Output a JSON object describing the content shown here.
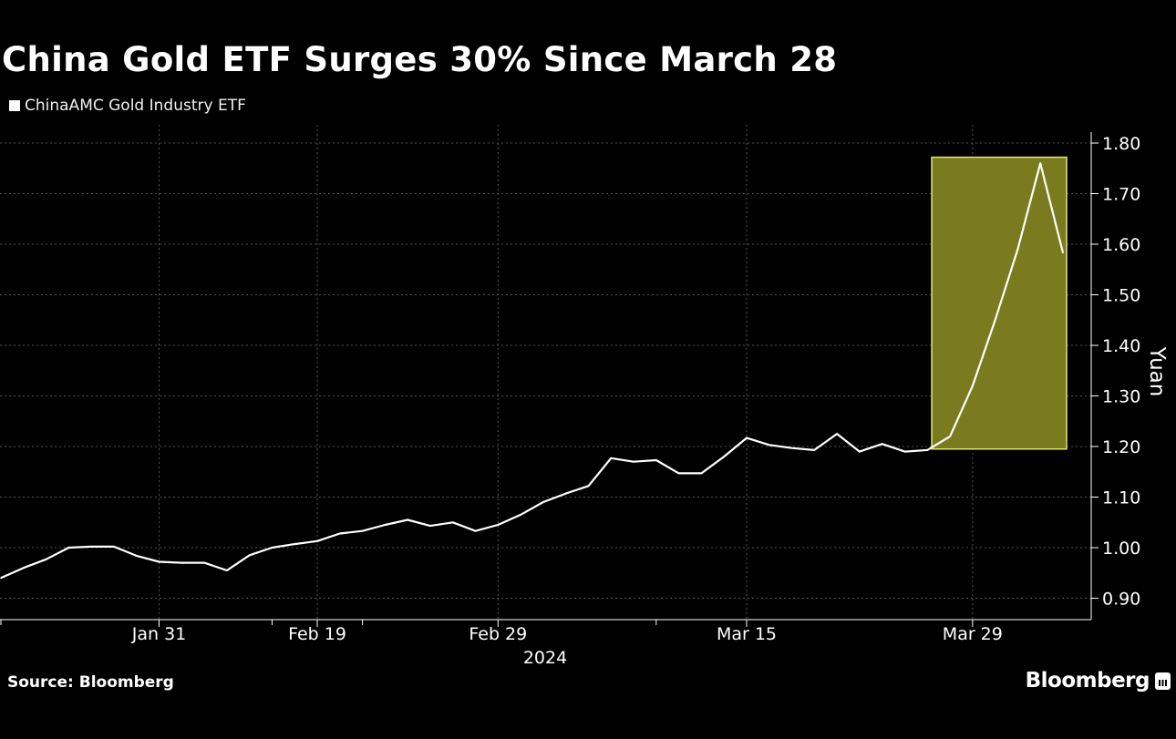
{
  "title": "China Gold ETF Surges 30% Since March 28",
  "source": "Source: Bloomberg",
  "brand": "Bloomberg",
  "colors": {
    "background": "#000000",
    "line": "#ffffff",
    "highlight_fill": "#7a7a1e",
    "highlight_stroke": "#e6e67a",
    "grid": "#555555"
  },
  "chart_data": {
    "type": "line",
    "title": "China Gold ETF Surges 30% Since March 28",
    "ylabel": "Yuan",
    "xlabel": "",
    "year_label": "2024",
    "ylim": [
      0.86,
      1.84
    ],
    "y_ticks": [
      "1.80",
      "1.70",
      "1.60",
      "1.50",
      "1.40",
      "1.30",
      "1.20",
      "1.10",
      "1.00",
      "0.90"
    ],
    "x_tick_labels": [
      "Jan 31",
      "Feb 19",
      "Feb 29",
      "Mar 15",
      "Mar 29"
    ],
    "legend": "top-left",
    "grid": true,
    "series": [
      {
        "name": "ChinaAMC Gold Industry ETF",
        "values": [
          0.94,
          0.96,
          0.977,
          1.0,
          1.002,
          1.002,
          0.984,
          0.972,
          0.97,
          0.97,
          0.955,
          0.985,
          1.0,
          1.007,
          1.013,
          1.028,
          1.033,
          1.045,
          1.055,
          1.043,
          1.05,
          1.033,
          1.045,
          1.065,
          1.09,
          1.107,
          1.122,
          1.177,
          1.17,
          1.173,
          1.147,
          1.147,
          1.18,
          1.217,
          1.203,
          1.197,
          1.193,
          1.225,
          1.19,
          1.205,
          1.19,
          1.193,
          1.22,
          1.32,
          1.45,
          1.59,
          1.76,
          1.583
        ]
      }
    ],
    "highlight": {
      "start_index": 42,
      "end_index": 47,
      "y_range": [
        1.195,
        1.772
      ]
    }
  }
}
